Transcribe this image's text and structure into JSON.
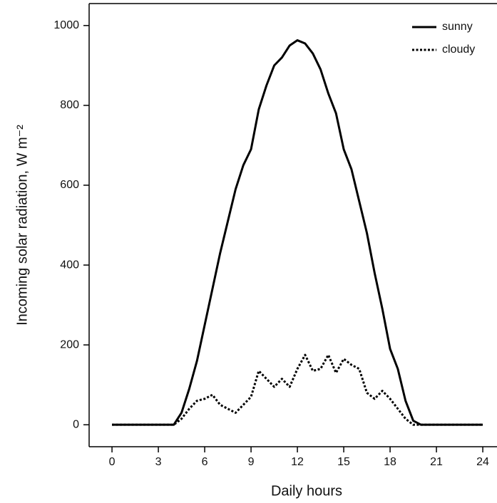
{
  "chart_data": {
    "type": "line",
    "x_label": "Daily hours",
    "y_label": "Incoming solar radiation, W m⁻²",
    "x": [
      0,
      4,
      4.5,
      5,
      5.5,
      6,
      6.5,
      7,
      7.5,
      8,
      8.5,
      9,
      9.5,
      10,
      10.5,
      11,
      11.5,
      12,
      12.5,
      13,
      13.5,
      14,
      14.5,
      15,
      15.5,
      16,
      16.5,
      17,
      17.5,
      18,
      18.5,
      19,
      19.5,
      20,
      24
    ],
    "series": [
      {
        "name": "sunny",
        "color": "#000000",
        "dash": "solid",
        "values": [
          0,
          0,
          30,
          90,
          160,
          250,
          340,
          430,
          510,
          590,
          650,
          690,
          790,
          850,
          900,
          920,
          950,
          963,
          955,
          930,
          890,
          830,
          780,
          690,
          640,
          560,
          480,
          380,
          290,
          190,
          140,
          60,
          10,
          0,
          0
        ]
      },
      {
        "name": "cloudy",
        "color": "#000000",
        "dash": "dotted",
        "values": [
          0,
          0,
          15,
          40,
          60,
          65,
          75,
          50,
          40,
          30,
          50,
          70,
          135,
          115,
          95,
          115,
          95,
          140,
          175,
          135,
          140,
          175,
          130,
          165,
          150,
          140,
          80,
          65,
          85,
          65,
          40,
          15,
          0,
          0,
          0
        ]
      }
    ],
    "xlim": [
      -1.48,
      24.92
    ],
    "ylim": [
      -55,
      1055
    ],
    "xticks": [
      0,
      3,
      6,
      9,
      12,
      15,
      18,
      21,
      24
    ],
    "yticks": [
      0,
      200,
      400,
      600,
      800,
      1000
    ],
    "legend": "top-right",
    "grid": false
  }
}
